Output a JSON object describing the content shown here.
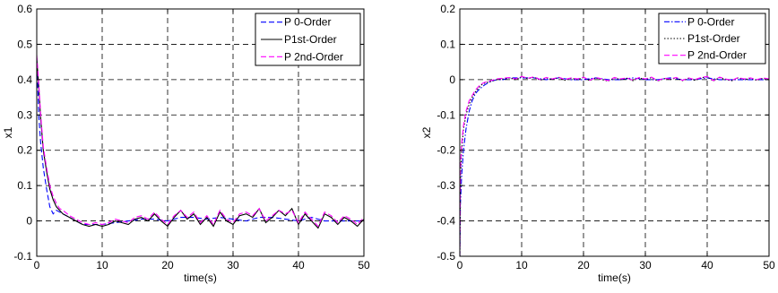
{
  "chart_data": [
    {
      "type": "line",
      "title": "",
      "xlabel": "time(s)",
      "ylabel": "x1",
      "xlim": [
        0,
        50
      ],
      "ylim": [
        -0.1,
        0.6
      ],
      "xticks": [
        "0",
        "10",
        "20",
        "30",
        "40",
        "50"
      ],
      "yticks": [
        "-0.1",
        "0",
        "0.1",
        "0.2",
        "0.3",
        "0.4",
        "0.5",
        "0.6"
      ],
      "grid": true,
      "legend_position": "top-right",
      "series": [
        {
          "name": "P 0-Order",
          "color": "#0000ff",
          "dash": "dash",
          "x": [
            0,
            0.3,
            0.6,
            1,
            1.5,
            2,
            2.5,
            3,
            4,
            5,
            6,
            7,
            8,
            9,
            10,
            12,
            14,
            16,
            18,
            20,
            22,
            24,
            26,
            28,
            30,
            32,
            34,
            36,
            38,
            40,
            42,
            44,
            46,
            48,
            50
          ],
          "y": [
            0.46,
            0.3,
            0.22,
            0.15,
            0.09,
            0.04,
            0.02,
            0.03,
            0.02,
            0.01,
            0.0,
            -0.01,
            -0.01,
            -0.01,
            -0.01,
            -0.005,
            0.0,
            0.005,
            0.005,
            0.0,
            0.01,
            0.01,
            0.005,
            0.01,
            0.005,
            0.0,
            0.01,
            0.01,
            0.005,
            0.0,
            0.01,
            0.0,
            0.0,
            0.0,
            0.0
          ]
        },
        {
          "name": "P1st-Order",
          "color": "#000000",
          "dash": "solid",
          "x": [
            0,
            0.3,
            0.6,
            1,
            1.5,
            2,
            2.5,
            3,
            3.5,
            4,
            5,
            6,
            7,
            8,
            9,
            10,
            11,
            12,
            13,
            14,
            15,
            16,
            17,
            18,
            19,
            20,
            21,
            22,
            23,
            24,
            25,
            26,
            27,
            28,
            29,
            30,
            31,
            32,
            33,
            34,
            35,
            36,
            37,
            38,
            39,
            40,
            41,
            42,
            43,
            44,
            45,
            46,
            47,
            48,
            49,
            50
          ],
          "y": [
            0.46,
            0.38,
            0.29,
            0.2,
            0.14,
            0.09,
            0.06,
            0.04,
            0.03,
            0.02,
            0.01,
            0.0,
            -0.01,
            -0.015,
            -0.01,
            -0.015,
            -0.01,
            0.0,
            -0.005,
            -0.01,
            0.005,
            0.01,
            0.0,
            0.02,
            0.0,
            -0.015,
            0.01,
            0.03,
            0.005,
            0.02,
            -0.01,
            0.01,
            -0.015,
            0.025,
            0.0,
            -0.01,
            0.015,
            0.02,
            0.01,
            0.035,
            -0.005,
            0.01,
            0.03,
            0.015,
            0.035,
            -0.01,
            0.02,
            0.0,
            -0.02,
            0.02,
            0.01,
            -0.01,
            0.01,
            0.0,
            -0.015,
            0.005
          ]
        },
        {
          "name": "P 2nd-Order",
          "color": "#ff00ff",
          "dash": "dash",
          "x": [
            0,
            0.3,
            0.6,
            1,
            1.5,
            2,
            2.5,
            3,
            3.5,
            4,
            5,
            6,
            7,
            8,
            9,
            10,
            11,
            12,
            13,
            14,
            15,
            16,
            17,
            18,
            19,
            20,
            21,
            22,
            23,
            24,
            25,
            26,
            27,
            28,
            29,
            30,
            31,
            32,
            33,
            34,
            35,
            36,
            37,
            38,
            39,
            40,
            41,
            42,
            43,
            44,
            45,
            46,
            47,
            48,
            49,
            50
          ],
          "y": [
            0.47,
            0.39,
            0.3,
            0.21,
            0.15,
            0.1,
            0.07,
            0.05,
            0.035,
            0.03,
            0.015,
            0.005,
            -0.005,
            -0.01,
            -0.005,
            -0.01,
            -0.005,
            0.005,
            0.0,
            -0.005,
            0.01,
            0.015,
            0.005,
            0.025,
            0.005,
            -0.01,
            0.015,
            0.03,
            0.01,
            0.025,
            -0.005,
            0.015,
            -0.01,
            0.03,
            0.005,
            -0.005,
            0.02,
            0.025,
            0.015,
            0.035,
            0.0,
            0.015,
            0.03,
            0.02,
            0.03,
            -0.005,
            0.025,
            0.005,
            -0.015,
            0.025,
            0.015,
            -0.005,
            0.015,
            0.005,
            -0.01,
            0.01
          ]
        }
      ]
    },
    {
      "type": "line",
      "title": "",
      "xlabel": "time(s)",
      "ylabel": "x2",
      "xlim": [
        0,
        50
      ],
      "ylim": [
        -0.5,
        0.2
      ],
      "xticks": [
        "0",
        "10",
        "20",
        "30",
        "40",
        "50"
      ],
      "yticks": [
        "-0.5",
        "-0.4",
        "-0.3",
        "-0.2",
        "-0.1",
        "0",
        "0.1",
        "0.2"
      ],
      "grid": true,
      "legend_position": "top-right",
      "series": [
        {
          "name": "P 0-Order",
          "color": "#0000ff",
          "dash": "dashdot",
          "x": [
            0,
            0.1,
            0.3,
            0.6,
            1,
            1.5,
            2,
            2.5,
            3,
            4,
            5,
            6,
            7,
            8,
            10,
            12,
            14,
            16,
            18,
            20,
            22,
            24,
            26,
            28,
            30,
            32,
            34,
            36,
            38,
            40,
            42,
            44,
            46,
            48,
            50
          ],
          "y": [
            -0.5,
            -0.35,
            -0.27,
            -0.2,
            -0.14,
            -0.09,
            -0.06,
            -0.04,
            -0.03,
            -0.015,
            -0.005,
            0.0,
            0.0,
            0.005,
            0.005,
            0.005,
            0.0,
            0.005,
            0.0,
            0.0,
            0.005,
            0.0,
            0.0,
            0.005,
            0.0,
            0.0,
            0.005,
            0.0,
            0.0,
            0.005,
            0.0,
            0.0,
            0.0,
            0.0,
            0.0
          ]
        },
        {
          "name": "P1st-Order",
          "color": "#000000",
          "dash": "dot",
          "x": [
            0,
            0.1,
            0.3,
            0.6,
            1,
            1.5,
            2,
            2.5,
            3,
            3.5,
            4,
            5,
            6,
            7,
            8,
            9,
            10,
            11,
            12,
            13,
            14,
            15,
            16,
            17,
            18,
            19,
            20,
            21,
            22,
            23,
            24,
            25,
            26,
            27,
            28,
            29,
            30,
            31,
            32,
            33,
            34,
            35,
            36,
            37,
            38,
            39,
            40,
            41,
            42,
            43,
            44,
            45,
            46,
            47,
            48,
            49,
            50
          ],
          "y": [
            -0.5,
            -0.28,
            -0.2,
            -0.14,
            -0.1,
            -0.07,
            -0.05,
            -0.035,
            -0.025,
            -0.015,
            -0.01,
            -0.005,
            0.0,
            0.002,
            0.005,
            0.0,
            0.008,
            0.003,
            0.007,
            -0.002,
            0.005,
            0.0,
            0.006,
            -0.002,
            0.004,
            0.0,
            0.006,
            -0.003,
            0.005,
            0.0,
            -0.004,
            0.005,
            0.0,
            0.004,
            -0.003,
            0.005,
            0.0,
            0.006,
            -0.004,
            0.003,
            0.0,
            0.005,
            -0.003,
            0.004,
            -0.002,
            0.005,
            0.008,
            -0.004,
            0.006,
            0.0,
            -0.003,
            0.005,
            0.0,
            0.004,
            -0.002,
            0.004,
            0.0
          ]
        },
        {
          "name": "P 2nd-Order",
          "color": "#ff00ff",
          "dash": "dash",
          "x": [
            0,
            0.1,
            0.3,
            0.6,
            1,
            1.5,
            2,
            2.5,
            3,
            3.5,
            4,
            5,
            6,
            7,
            8,
            9,
            10,
            11,
            12,
            13,
            14,
            15,
            16,
            17,
            18,
            19,
            20,
            21,
            22,
            23,
            24,
            25,
            26,
            27,
            28,
            29,
            30,
            31,
            32,
            33,
            34,
            35,
            36,
            37,
            38,
            39,
            40,
            41,
            42,
            43,
            44,
            45,
            46,
            47,
            48,
            49,
            50
          ],
          "y": [
            -0.5,
            -0.25,
            -0.18,
            -0.13,
            -0.09,
            -0.06,
            -0.045,
            -0.03,
            -0.02,
            -0.012,
            -0.008,
            -0.003,
            0.002,
            0.004,
            0.006,
            0.002,
            0.009,
            0.004,
            0.008,
            0.0,
            0.006,
            0.002,
            0.007,
            0.0,
            0.005,
            0.002,
            0.007,
            -0.002,
            0.006,
            0.002,
            -0.003,
            0.006,
            0.002,
            0.005,
            -0.002,
            0.006,
            0.002,
            0.007,
            -0.003,
            0.004,
            0.002,
            0.006,
            -0.002,
            0.005,
            0.0,
            0.006,
            0.009,
            -0.003,
            0.007,
            0.002,
            -0.002,
            0.006,
            0.002,
            0.005,
            0.0,
            0.005,
            0.002
          ]
        }
      ]
    }
  ]
}
